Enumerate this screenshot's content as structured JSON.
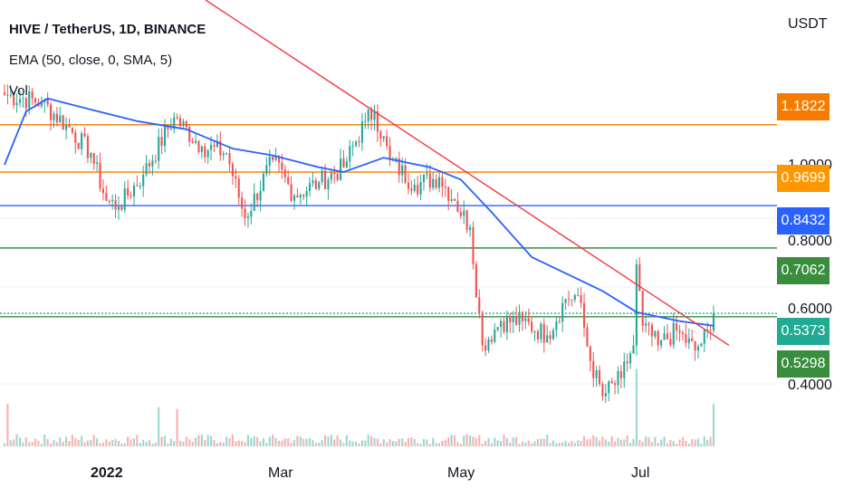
{
  "header": {
    "title": "HIVE / TetherUS, 1D, BINANCE",
    "indicator": "EMA (50, close, 0, SMA, 5)",
    "volume": "Vol"
  },
  "axis": {
    "unit": "USDT",
    "price_ticks": [
      "1.0000",
      "0.8000",
      "0.6000",
      "0.4000"
    ],
    "time_ticks": [
      "2022",
      "Mar",
      "May",
      "Jul"
    ]
  },
  "colors": {
    "up": "#26a69a",
    "down": "#ef5350",
    "ema": "#2962ff",
    "trendline": "#f23645",
    "orange_level": "#f57c00",
    "blue_level": "#2962ff",
    "green_level": "#388e3c",
    "current": "#22ab94",
    "tag_1_1822": "#f57c00",
    "tag_0_9699": "#ff9800",
    "tag_0_8432": "#2962ff",
    "tag_0_7062": "#388e3c",
    "tag_0_5373": "#22ab94",
    "tag_0_5298": "#388e3c"
  },
  "levels": [
    {
      "label": "1.1822",
      "value": 1.1822,
      "tag": "1.1822"
    },
    {
      "label": "0.9699",
      "value": 0.9699,
      "tag": "0.9699"
    },
    {
      "label": "0.8432",
      "value": 0.8432,
      "tag": "0.8432"
    },
    {
      "label": "0.7062",
      "value": 0.7062,
      "tag": "0.7062"
    },
    {
      "label": "0.5373",
      "value": 0.5373,
      "tag": "0.5373"
    },
    {
      "label": "0.5298",
      "value": 0.5298,
      "tag": "0.5298"
    }
  ],
  "chart_data": {
    "type": "candlestick",
    "symbol": "HIVE / TetherUS",
    "interval": "1D",
    "exchange": "BINANCE",
    "x_range": [
      "2021-12-08",
      "2022-07-26"
    ],
    "y_range": [
      0.3,
      1.36
    ],
    "y_scale": "log",
    "price_anchors": [
      {
        "date": "2021-12-08",
        "close": 1.34
      },
      {
        "date": "2021-12-20",
        "close": 1.3
      },
      {
        "date": "2021-12-28",
        "close": 1.18
      },
      {
        "date": "2022-01-05",
        "close": 1.05
      },
      {
        "date": "2022-01-10",
        "close": 0.86
      },
      {
        "date": "2022-01-14",
        "close": 0.84
      },
      {
        "date": "2022-01-22",
        "close": 0.96
      },
      {
        "date": "2022-02-01",
        "close": 1.22
      },
      {
        "date": "2022-02-10",
        "close": 1.08
      },
      {
        "date": "2022-02-18",
        "close": 1.05
      },
      {
        "date": "2022-02-24",
        "close": 0.8
      },
      {
        "date": "2022-03-05",
        "close": 1.02
      },
      {
        "date": "2022-03-12",
        "close": 0.88
      },
      {
        "date": "2022-03-20",
        "close": 0.93
      },
      {
        "date": "2022-03-28",
        "close": 0.99
      },
      {
        "date": "2022-04-04",
        "close": 1.2
      },
      {
        "date": "2022-04-07",
        "close": 1.25
      },
      {
        "date": "2022-04-12",
        "close": 1.02
      },
      {
        "date": "2022-04-20",
        "close": 0.92
      },
      {
        "date": "2022-04-28",
        "close": 0.95
      },
      {
        "date": "2022-05-03",
        "close": 0.86
      },
      {
        "date": "2022-05-08",
        "close": 0.77
      },
      {
        "date": "2022-05-12",
        "close": 0.47
      },
      {
        "date": "2022-05-18",
        "close": 0.52
      },
      {
        "date": "2022-05-25",
        "close": 0.52
      },
      {
        "date": "2022-06-02",
        "close": 0.49
      },
      {
        "date": "2022-06-08",
        "close": 0.57
      },
      {
        "date": "2022-06-12",
        "close": 0.58
      },
      {
        "date": "2022-06-16",
        "close": 0.44
      },
      {
        "date": "2022-06-20",
        "close": 0.38
      },
      {
        "date": "2022-06-26",
        "close": 0.41
      },
      {
        "date": "2022-06-30",
        "close": 0.47
      },
      {
        "date": "2022-07-01",
        "close": 0.66
      },
      {
        "date": "2022-07-03",
        "close": 0.51
      },
      {
        "date": "2022-07-08",
        "close": 0.47
      },
      {
        "date": "2022-07-14",
        "close": 0.5
      },
      {
        "date": "2022-07-20",
        "close": 0.46
      },
      {
        "date": "2022-07-25",
        "close": 0.5
      },
      {
        "date": "2022-07-26",
        "close": 0.5373
      }
    ],
    "ema50_anchors": [
      {
        "date": "2021-12-08",
        "value": 1.0
      },
      {
        "date": "2021-12-15",
        "value": 1.25
      },
      {
        "date": "2021-12-22",
        "value": 1.32
      },
      {
        "date": "2022-01-05",
        "value": 1.26
      },
      {
        "date": "2022-01-20",
        "value": 1.2
      },
      {
        "date": "2022-02-05",
        "value": 1.16
      },
      {
        "date": "2022-02-20",
        "value": 1.07
      },
      {
        "date": "2022-03-05",
        "value": 1.04
      },
      {
        "date": "2022-03-20",
        "value": 0.99
      },
      {
        "date": "2022-03-28",
        "value": 0.97
      },
      {
        "date": "2022-04-10",
        "value": 1.03
      },
      {
        "date": "2022-04-25",
        "value": 0.99
      },
      {
        "date": "2022-05-05",
        "value": 0.94
      },
      {
        "date": "2022-05-15",
        "value": 0.82
      },
      {
        "date": "2022-05-28",
        "value": 0.68
      },
      {
        "date": "2022-06-12",
        "value": 0.62
      },
      {
        "date": "2022-06-20",
        "value": 0.59
      },
      {
        "date": "2022-07-01",
        "value": 0.54
      },
      {
        "date": "2022-07-15",
        "value": 0.52
      },
      {
        "date": "2022-07-26",
        "value": 0.51
      }
    ],
    "trendline": {
      "from": {
        "date": "2022-04-07",
        "value": 1.25
      },
      "to": {
        "date": "2022-07-31",
        "value": 0.47
      },
      "extends_left": true
    },
    "volume_spikes": [
      {
        "date": "2022-07-01",
        "relative": 0.95
      },
      {
        "date": "2022-07-26",
        "relative": 0.52
      },
      {
        "date": "2022-01-27",
        "relative": 0.48
      },
      {
        "date": "2022-02-02",
        "relative": 0.46
      },
      {
        "date": "2021-12-09",
        "relative": 0.52
      }
    ]
  }
}
